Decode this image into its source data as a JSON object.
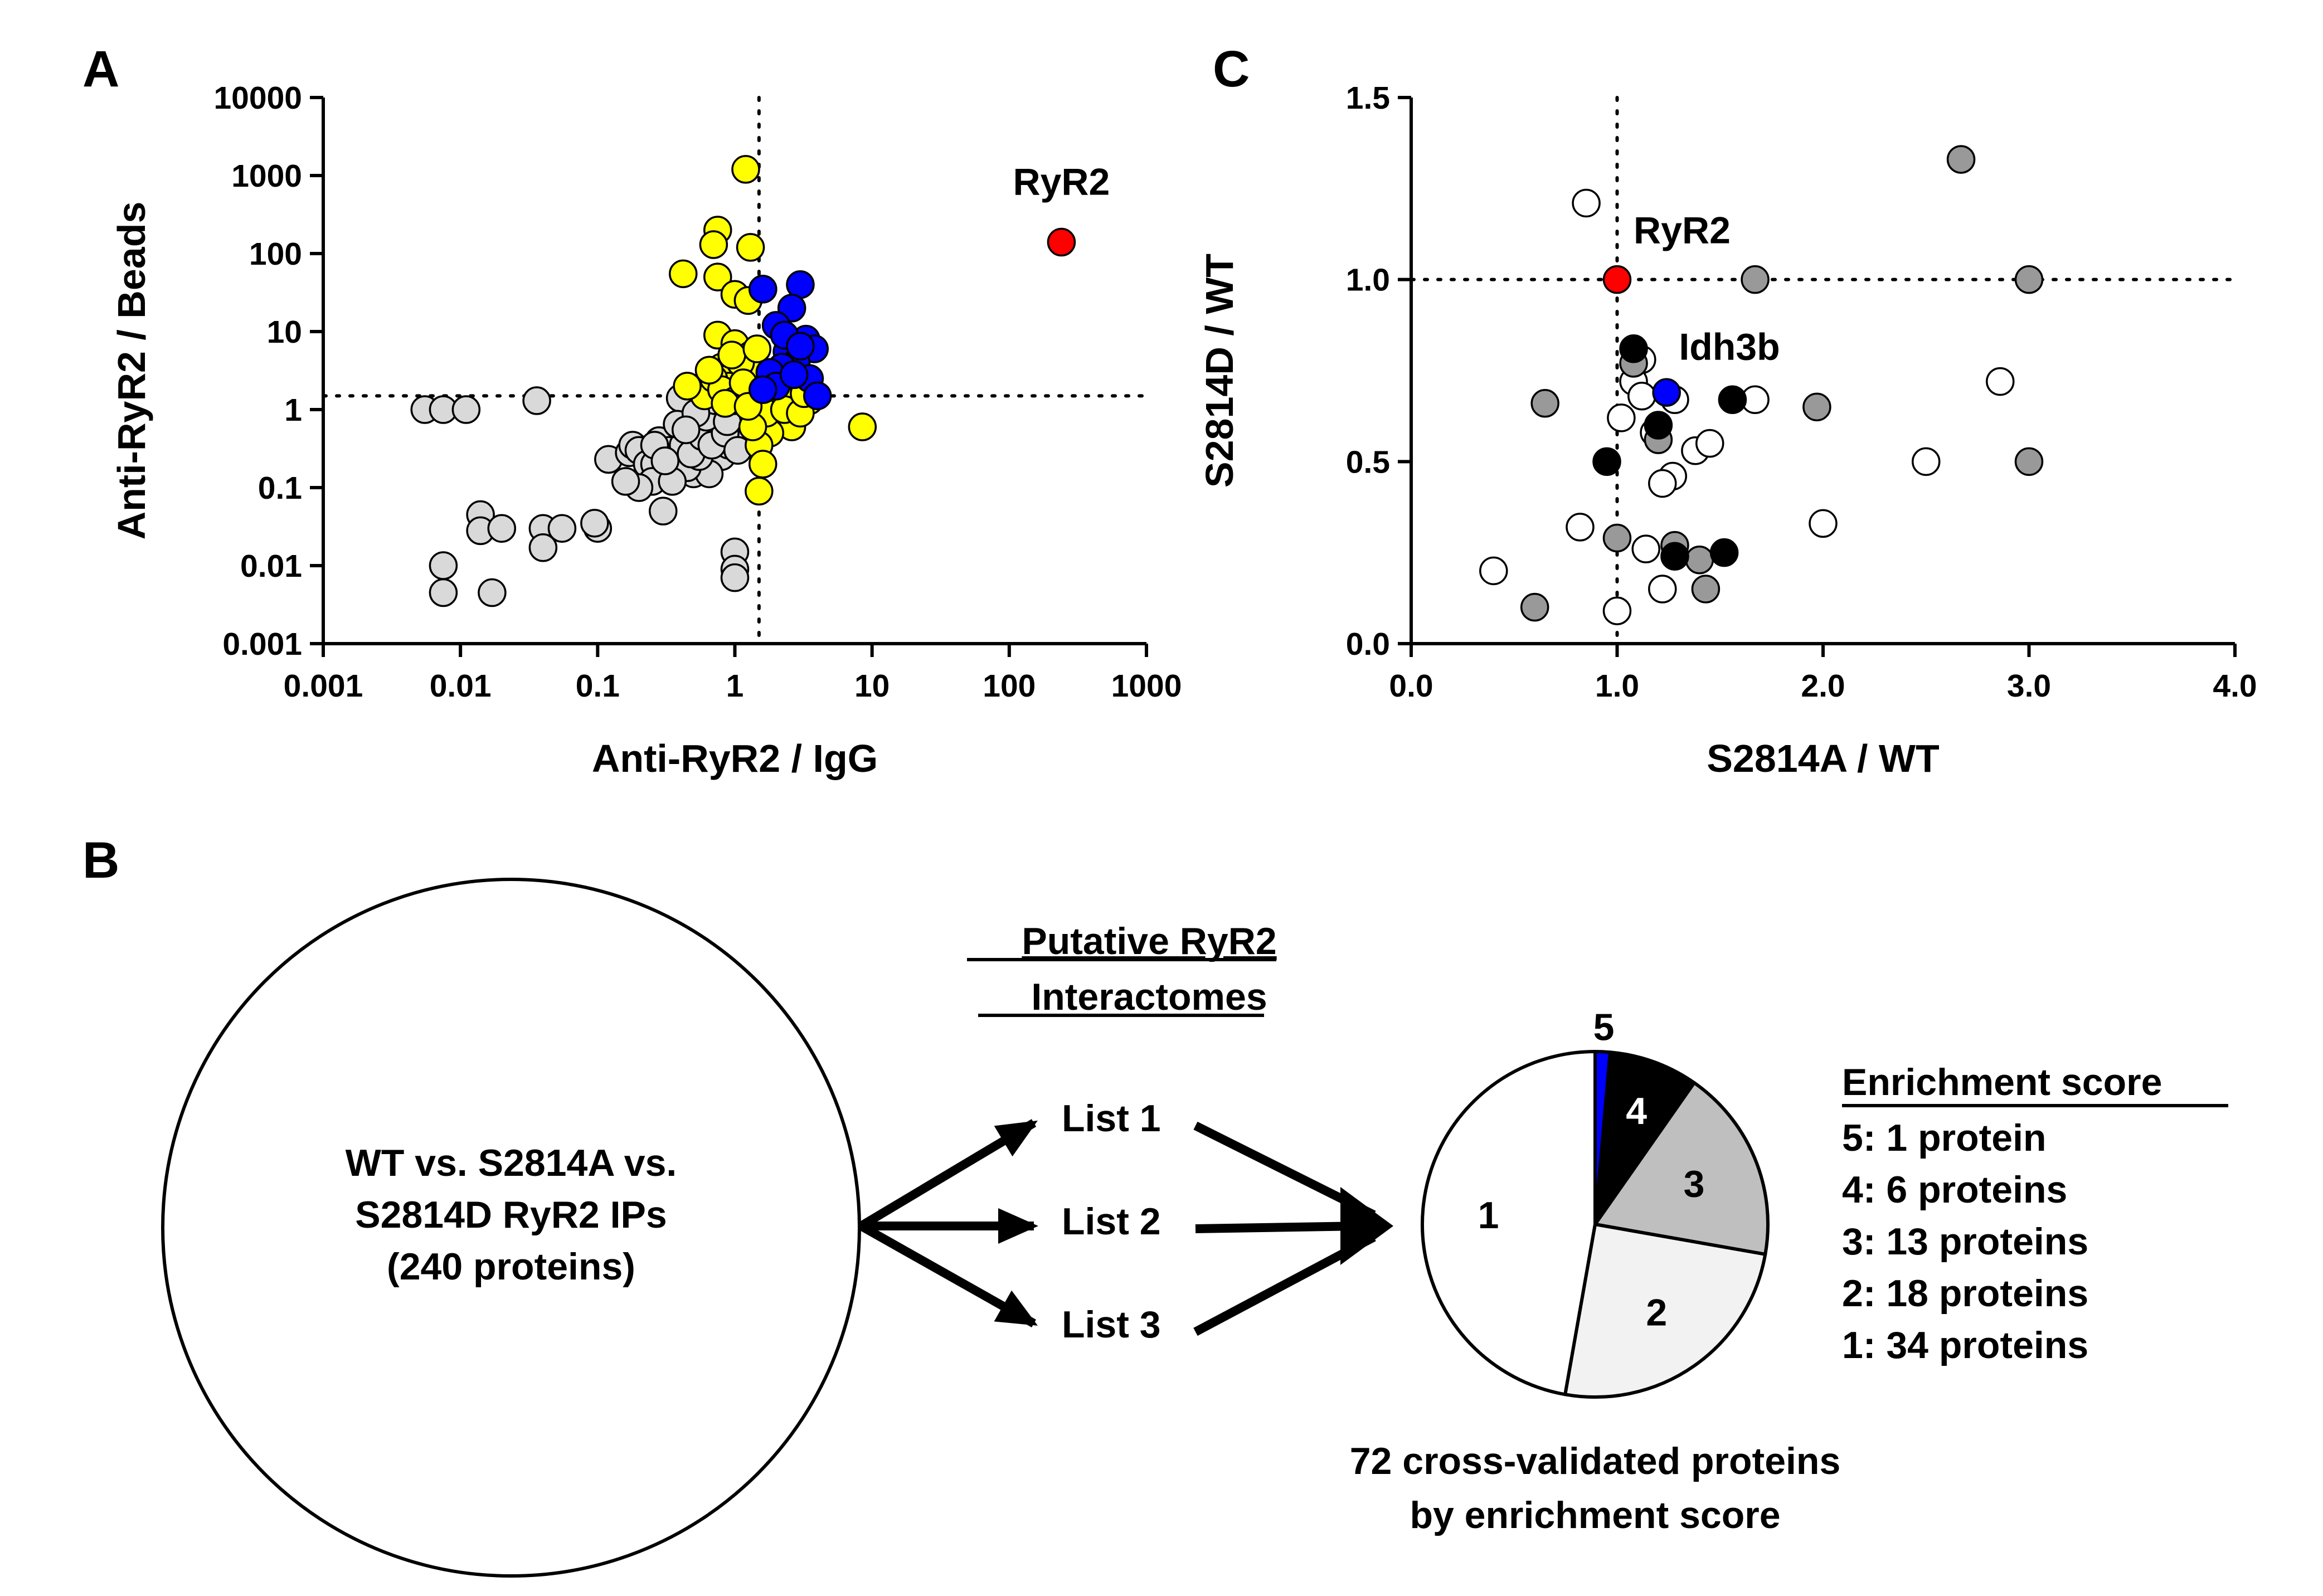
{
  "panels": {
    "a": {
      "label": "A"
    },
    "b": {
      "label": "B"
    },
    "c": {
      "label": "C"
    }
  },
  "colors": {
    "yellow": "#ffff00",
    "blue": "#0000ff",
    "red": "#ff0000",
    "lightgray": "#d9d9d9",
    "darkgray": "#999999",
    "black": "#000000",
    "white": "#ffffff",
    "piegray": "#bfbfbf",
    "pielight": "#f2f2f2"
  },
  "chart_data": [
    {
      "id": "panel-a",
      "type": "scatter",
      "xscale": "log",
      "yscale": "log",
      "xlabel": "Anti-RyR2 / IgG",
      "ylabel": "Anti-RyR2 / Beads",
      "xlim": [
        0.001,
        1000
      ],
      "ylim": [
        0.001,
        10000
      ],
      "xticks": [
        "0.001",
        "0.01",
        "0.1",
        "1",
        "10",
        "100",
        "1000"
      ],
      "yticks": [
        "0.001",
        "0.01",
        "0.1",
        "1",
        "10",
        "100",
        "1000",
        "10000"
      ],
      "xticks_values": [
        0.001,
        0.01,
        0.1,
        1,
        10,
        100,
        1000
      ],
      "yticks_values": [
        0.001,
        0.01,
        0.1,
        1,
        10,
        100,
        1000,
        10000
      ],
      "ref_x": 1.5,
      "ref_y": 1.5,
      "annotation": {
        "text": "RyR2",
        "x": 240,
        "y": 140
      },
      "series": [
        {
          "name": "gray",
          "color": "lightgray",
          "points": [
            [
              0.0055,
              1.0
            ],
            [
              0.0075,
              1.0
            ],
            [
              0.011,
              1.0
            ],
            [
              0.036,
              1.3
            ],
            [
              0.0075,
              0.01
            ],
            [
              0.0075,
              0.0045
            ],
            [
              0.017,
              0.0045
            ],
            [
              0.014,
              0.045
            ],
            [
              0.014,
              0.028
            ],
            [
              0.02,
              0.03
            ],
            [
              0.04,
              0.03
            ],
            [
              0.04,
              0.017
            ],
            [
              0.055,
              0.03
            ],
            [
              0.1,
              0.03
            ],
            [
              0.095,
              0.035
            ],
            [
              0.12,
              0.23
            ],
            [
              0.17,
              0.28
            ],
            [
              0.18,
              0.35
            ],
            [
              0.2,
              0.3
            ],
            [
              0.23,
              0.2
            ],
            [
              0.26,
              0.2
            ],
            [
              0.3,
              0.3
            ],
            [
              0.35,
              0.25
            ],
            [
              0.4,
              0.45
            ],
            [
              0.45,
              0.6
            ],
            [
              0.5,
              0.5
            ],
            [
              0.55,
              0.7
            ],
            [
              0.6,
              0.9
            ],
            [
              0.7,
              1.0
            ],
            [
              0.8,
              0.8
            ],
            [
              0.9,
              1.1
            ],
            [
              0.4,
              1.4
            ],
            [
              0.5,
              0.15
            ],
            [
              0.3,
              0.05
            ],
            [
              0.25,
              0.12
            ],
            [
              0.2,
              0.1
            ],
            [
              0.6,
              0.3
            ],
            [
              0.7,
              0.5
            ],
            [
              0.8,
              0.25
            ],
            [
              0.9,
              0.35
            ],
            [
              1.0,
              0.6
            ],
            [
              1.1,
              0.9
            ],
            [
              0.65,
              0.15
            ],
            [
              0.45,
              0.18
            ],
            [
              0.55,
              0.25
            ],
            [
              0.35,
              0.12
            ],
            [
              0.28,
              0.4
            ],
            [
              0.75,
              0.6
            ],
            [
              0.95,
              0.45
            ],
            [
              1.0,
              0.015
            ],
            [
              1.0,
              0.009
            ],
            [
              1.0,
              0.007
            ],
            [
              0.33,
              0.3
            ],
            [
              0.42,
              0.35
            ],
            [
              0.48,
              0.27
            ],
            [
              0.58,
              0.45
            ],
            [
              0.68,
              0.35
            ],
            [
              0.85,
              0.5
            ],
            [
              1.05,
              0.3
            ],
            [
              0.62,
              0.8
            ],
            [
              0.72,
              1.3
            ],
            [
              0.38,
              0.65
            ],
            [
              0.52,
              0.9
            ],
            [
              0.88,
              0.7
            ],
            [
              0.26,
              0.35
            ],
            [
              0.31,
              0.22
            ],
            [
              0.44,
              0.55
            ],
            [
              0.16,
              0.12
            ]
          ]
        },
        {
          "name": "yellow",
          "color": "yellow",
          "points": [
            [
              1.2,
              1200
            ],
            [
              0.75,
              200
            ],
            [
              0.7,
              130
            ],
            [
              1.3,
              120
            ],
            [
              0.42,
              55
            ],
            [
              0.75,
              50
            ],
            [
              1.0,
              30
            ],
            [
              1.25,
              25
            ],
            [
              1.6,
              35
            ],
            [
              0.75,
              9
            ],
            [
              1.0,
              7
            ],
            [
              1.3,
              5
            ],
            [
              0.8,
              3.5
            ],
            [
              1.0,
              3
            ],
            [
              1.2,
              2.5
            ],
            [
              1.4,
              2
            ],
            [
              1.6,
              2.2
            ],
            [
              0.9,
              2
            ],
            [
              1.1,
              1.8
            ],
            [
              0.6,
              1.5
            ],
            [
              0.7,
              2.5
            ],
            [
              0.8,
              1.8
            ],
            [
              1.0,
              1.3
            ],
            [
              1.2,
              1.5
            ],
            [
              1.4,
              1.0
            ],
            [
              1.6,
              1.2
            ],
            [
              1.8,
              1.1
            ],
            [
              2.2,
              1.5
            ],
            [
              2.8,
              1.3
            ],
            [
              3.5,
              1.3
            ],
            [
              1.5,
              0.8
            ],
            [
              2.0,
              0.7
            ],
            [
              2.6,
              0.6
            ],
            [
              1.8,
              0.5
            ],
            [
              1.5,
              0.35
            ],
            [
              1.6,
              0.2
            ],
            [
              1.5,
              0.09
            ],
            [
              8.5,
              0.6
            ],
            [
              0.45,
              2
            ],
            [
              1.3,
              3.2
            ],
            [
              1.1,
              4
            ],
            [
              0.95,
              5
            ],
            [
              1.45,
              6
            ],
            [
              0.85,
              1.2
            ],
            [
              1.7,
              0.9
            ],
            [
              2.3,
              1.0
            ],
            [
              3.0,
              0.9
            ],
            [
              3.2,
              1.6
            ],
            [
              1.35,
              0.6
            ],
            [
              2.0,
              2.3
            ],
            [
              1.15,
              2.2
            ],
            [
              0.65,
              3.2
            ],
            [
              1.25,
              1.1
            ]
          ]
        },
        {
          "name": "blue",
          "color": "blue",
          "points": [
            [
              1.6,
              35
            ],
            [
              3.0,
              40
            ],
            [
              2.6,
              20
            ],
            [
              2.0,
              12
            ],
            [
              3.3,
              8
            ],
            [
              2.4,
              5.5
            ],
            [
              3.8,
              6
            ],
            [
              2.8,
              4
            ],
            [
              2.2,
              3.5
            ],
            [
              1.8,
              3
            ],
            [
              3.5,
              2.5
            ],
            [
              2.0,
              2
            ],
            [
              1.6,
              1.8
            ],
            [
              4.0,
              1.5
            ],
            [
              2.7,
              2.8
            ],
            [
              2.3,
              9
            ],
            [
              3.0,
              6.5
            ]
          ]
        },
        {
          "name": "ryr2",
          "color": "red",
          "points": [
            [
              240,
              140
            ]
          ]
        }
      ]
    },
    {
      "id": "panel-c",
      "type": "scatter",
      "xlabel": "S2814A / WT",
      "ylabel": "S2814D / WT",
      "xlim": [
        0.0,
        4.0
      ],
      "ylim": [
        0.0,
        1.5
      ],
      "xticks": [
        "0.0",
        "1.0",
        "2.0",
        "3.0",
        "4.0"
      ],
      "yticks": [
        "0.0",
        "0.5",
        "1.0",
        "1.5"
      ],
      "xticks_values": [
        0,
        1,
        2,
        3,
        4
      ],
      "yticks_values": [
        0,
        0.5,
        1.0,
        1.5
      ],
      "ref_x": 1.0,
      "ref_y": 1.0,
      "annotations": [
        {
          "text": "RyR2",
          "x": 1.08,
          "y": 1.1
        },
        {
          "text": "Idh3b",
          "x": 1.3,
          "y": 0.78
        }
      ],
      "series": [
        {
          "name": "white",
          "color": "white",
          "points": [
            [
              0.85,
              1.21
            ],
            [
              1.12,
              0.78
            ],
            [
              1.08,
              0.72
            ],
            [
              1.12,
              0.68
            ],
            [
              1.28,
              0.67
            ],
            [
              1.67,
              0.67
            ],
            [
              1.02,
              0.62
            ],
            [
              1.18,
              0.58
            ],
            [
              1.38,
              0.53
            ],
            [
              1.45,
              0.55
            ],
            [
              1.27,
              0.46
            ],
            [
              1.22,
              0.44
            ],
            [
              2.86,
              0.72
            ],
            [
              2.5,
              0.5
            ],
            [
              0.82,
              0.32
            ],
            [
              1.14,
              0.26
            ],
            [
              2.0,
              0.33
            ],
            [
              0.4,
              0.2
            ],
            [
              1.22,
              0.15
            ],
            [
              1.0,
              0.09
            ]
          ]
        },
        {
          "name": "gray",
          "color": "darkgray",
          "points": [
            [
              2.67,
              1.33
            ],
            [
              1.67,
              1.0
            ],
            [
              3.0,
              1.0
            ],
            [
              1.08,
              0.77
            ],
            [
              0.65,
              0.66
            ],
            [
              1.97,
              0.65
            ],
            [
              1.2,
              0.56
            ],
            [
              3.0,
              0.5
            ],
            [
              1.0,
              0.29
            ],
            [
              1.28,
              0.27
            ],
            [
              1.4,
              0.23
            ],
            [
              1.43,
              0.15
            ],
            [
              0.6,
              0.1
            ]
          ]
        },
        {
          "name": "black",
          "color": "black",
          "points": [
            [
              1.08,
              0.81
            ],
            [
              1.56,
              0.67
            ],
            [
              1.2,
              0.6
            ],
            [
              0.95,
              0.5
            ],
            [
              1.28,
              0.24
            ],
            [
              1.52,
              0.25
            ]
          ]
        },
        {
          "name": "idh3b",
          "color": "blue",
          "points": [
            [
              1.24,
              0.69
            ]
          ]
        },
        {
          "name": "ryr2",
          "color": "red",
          "points": [
            [
              1.0,
              1.0
            ]
          ]
        }
      ]
    },
    {
      "id": "panel-b-pie",
      "type": "pie",
      "title": "72 cross-validated proteins",
      "subtitle": "by enrichment score",
      "slices": [
        {
          "label": "5",
          "value": 1,
          "color": "blue"
        },
        {
          "label": "4",
          "value": 6,
          "color": "black"
        },
        {
          "label": "3",
          "value": 13,
          "color": "piegray"
        },
        {
          "label": "2",
          "value": 18,
          "color": "pielight"
        },
        {
          "label": "1",
          "value": 34,
          "color": "white"
        }
      ],
      "legend": {
        "title": "Enrichment score",
        "items": [
          "5: 1 protein",
          "4: 6 proteins",
          "3: 13 proteins",
          "2: 18 proteins",
          "1: 34 proteins"
        ]
      }
    }
  ],
  "diagram": {
    "circle_lines": [
      "WT vs. S2814A vs.",
      "S2814D RyR2 IPs",
      "(240 proteins)"
    ],
    "heading_lines": [
      "Putative RyR2",
      "Interactomes"
    ],
    "lists": [
      "List 1",
      "List 2",
      "List 3"
    ]
  }
}
